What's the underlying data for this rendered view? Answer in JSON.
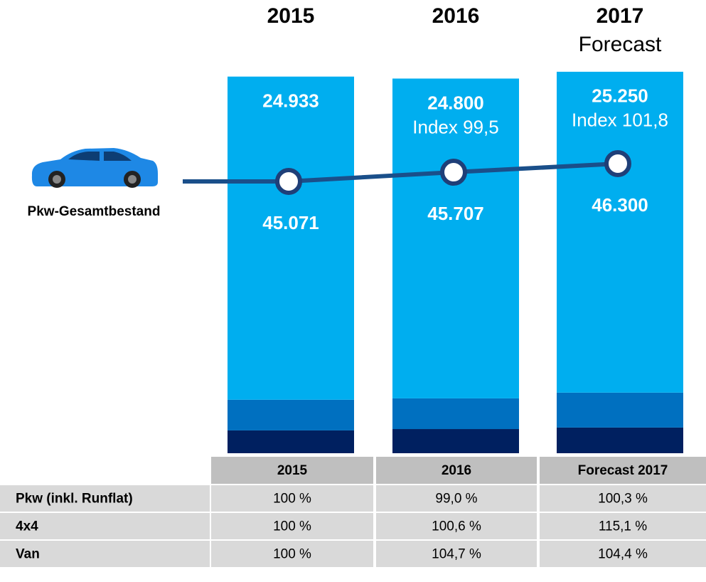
{
  "chart_data": {
    "type": "stacked-bar-line",
    "categories": [
      "2015",
      "2016",
      "2017"
    ],
    "forecast_label": "Forecast",
    "ylim": [
      0,
      30000
    ],
    "series": [
      {
        "color": "#002060",
        "values": [
          1510,
          1600,
          1700
        ]
      },
      {
        "color": "#0070c0",
        "values": [
          2030,
          2030,
          2310
        ]
      },
      {
        "color": "#00aeef",
        "values": [
          21390,
          21170,
          21240
        ]
      }
    ],
    "totals": {
      "values": [
        24933,
        24800,
        25250
      ],
      "value_labels": [
        "24.933",
        "24.800",
        "25.250"
      ]
    },
    "index_labels": [
      null,
      "Index 99,5",
      "Index 101,8"
    ],
    "line": {
      "name": "Pkw-Gesamtbestand",
      "color": "#1a4f8a",
      "axis": "y2",
      "values": [
        45071,
        45707,
        46300
      ],
      "value_labels": [
        "45.071",
        "45.707",
        "46.300"
      ]
    },
    "y2lim": [
      26300,
      57600
    ]
  },
  "table": {
    "header": [
      "2015",
      "2016",
      "Forecast 2017"
    ],
    "rows": [
      [
        "Pkw (inkl. Runflat)",
        "100 %",
        "99,0 %",
        "100,3 %"
      ],
      [
        "4x4",
        "100 %",
        "100,6 %",
        "115,1 %"
      ],
      [
        "Van",
        "100 %",
        "104,7 %",
        "104,4 %"
      ]
    ]
  }
}
